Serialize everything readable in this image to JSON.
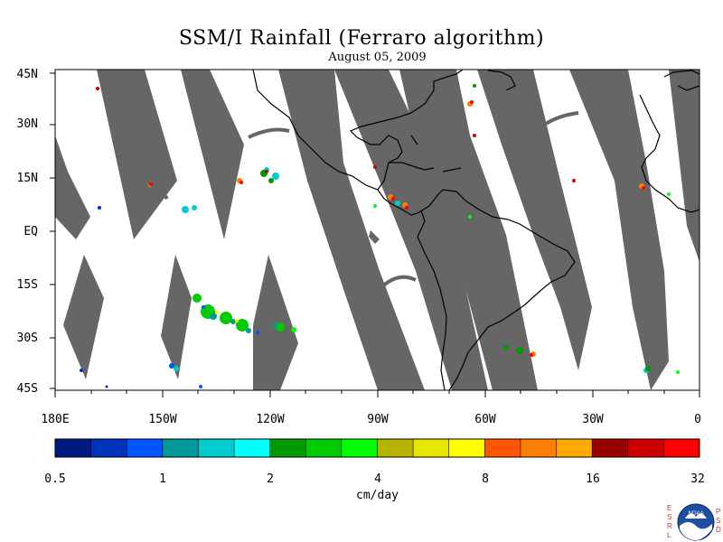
{
  "title": "SSM/I Rainfall (Ferraro algorithm)",
  "subtitle": "August 05, 2009",
  "latitude_labels": [
    "45N",
    "30N",
    "15N",
    "EQ",
    "15S",
    "30S",
    "45S"
  ],
  "longitude_labels": [
    "180E",
    "150W",
    "120W",
    "90W",
    "60W",
    "30W",
    "0"
  ],
  "colorbar": {
    "tick_labels": [
      "0.5",
      "1",
      "2",
      "4",
      "8",
      "16",
      "32"
    ],
    "unit": "cm/day",
    "colors": [
      "#001a80",
      "#0033bb",
      "#0055ff",
      "#009999",
      "#00cccc",
      "#00ffff",
      "#009900",
      "#00cc00",
      "#00ff00",
      "#b3b300",
      "#e6e600",
      "#ffff00",
      "#ff5500",
      "#ff8000",
      "#ffaa00",
      "#990000",
      "#cc0000",
      "#ff0000"
    ]
  },
  "map": {
    "no_data_color": "#666666",
    "coastline_color": "#000000"
  },
  "logo": {
    "left_letters": "ESRL",
    "right_letters": "PSD",
    "emblem_text": "NOAA"
  }
}
